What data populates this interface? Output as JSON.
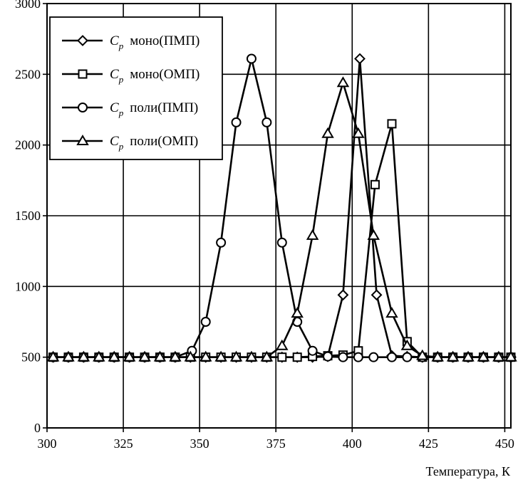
{
  "chart_data": {
    "type": "line",
    "title": "",
    "xlabel": "Температура, К",
    "ylabel": "",
    "xlim": [
      300,
      452
    ],
    "ylim": [
      0,
      3000
    ],
    "xticks": [
      300,
      325,
      350,
      375,
      400,
      425,
      450
    ],
    "yticks": [
      0,
      500,
      1000,
      1500,
      2000,
      2500,
      3000
    ],
    "grid": true,
    "legend_position": "top-left",
    "series": [
      {
        "name": "моно(ПМП)",
        "legend_prefix": "C",
        "legend_sub": "p",
        "marker": "diamond",
        "x": [
          302,
          307,
          312,
          317,
          322,
          327,
          332,
          337,
          342,
          347,
          352,
          357,
          362,
          367,
          372,
          377,
          382,
          387,
          392,
          397,
          402.5,
          408,
          413,
          418,
          423,
          428,
          433,
          438,
          443,
          448,
          452
        ],
        "y": [
          500,
          500,
          500,
          500,
          500,
          500,
          500,
          500,
          500,
          500,
          500,
          500,
          500,
          500,
          500,
          500,
          500,
          500,
          505,
          940,
          2610,
          940,
          510,
          505,
          500,
          500,
          500,
          500,
          500,
          500,
          500
        ]
      },
      {
        "name": "моно(ОМП)",
        "legend_prefix": "C",
        "legend_sub": "p",
        "marker": "square",
        "x": [
          302,
          307,
          312,
          317,
          322,
          327,
          332,
          337,
          342,
          347,
          352,
          357,
          362,
          367,
          372,
          377,
          382,
          387,
          392,
          397,
          402,
          407.5,
          413,
          418,
          423,
          428,
          433,
          438,
          443,
          448,
          452
        ],
        "y": [
          500,
          500,
          500,
          500,
          500,
          500,
          500,
          500,
          500,
          500,
          500,
          500,
          500,
          500,
          500,
          500,
          500,
          505,
          510,
          515,
          545,
          1720,
          2150,
          610,
          500,
          500,
          500,
          500,
          500,
          500,
          500
        ]
      },
      {
        "name": "поли(ПМП)",
        "legend_prefix": "C",
        "legend_sub": "p",
        "marker": "circle",
        "x": [
          302,
          307,
          312,
          317,
          322,
          327,
          332,
          337,
          342,
          347.5,
          352,
          357,
          362,
          367,
          372,
          377,
          382,
          387,
          392,
          397,
          402,
          407,
          413,
          418,
          423,
          428,
          433,
          438,
          443,
          448,
          452
        ],
        "y": [
          500,
          500,
          500,
          500,
          500,
          500,
          500,
          500,
          500,
          545,
          750,
          1310,
          2160,
          2610,
          2160,
          1310,
          750,
          545,
          505,
          500,
          500,
          500,
          500,
          500,
          500,
          500,
          500,
          500,
          500,
          500,
          500
        ]
      },
      {
        "name": "поли(ОМП)",
        "legend_prefix": "C",
        "legend_sub": "p",
        "marker": "triangle",
        "x": [
          302,
          307,
          312,
          317,
          322,
          327,
          332,
          337,
          342,
          347,
          352,
          357,
          362,
          367,
          372,
          377,
          382,
          387,
          392,
          397,
          402,
          407,
          413,
          418,
          423,
          428,
          433,
          438,
          443,
          448,
          452
        ],
        "y": [
          500,
          500,
          500,
          500,
          500,
          500,
          500,
          500,
          500,
          500,
          500,
          500,
          500,
          500,
          500,
          580,
          810,
          1360,
          2080,
          2440,
          2080,
          1360,
          810,
          580,
          510,
          500,
          500,
          500,
          500,
          500,
          500
        ]
      }
    ]
  }
}
